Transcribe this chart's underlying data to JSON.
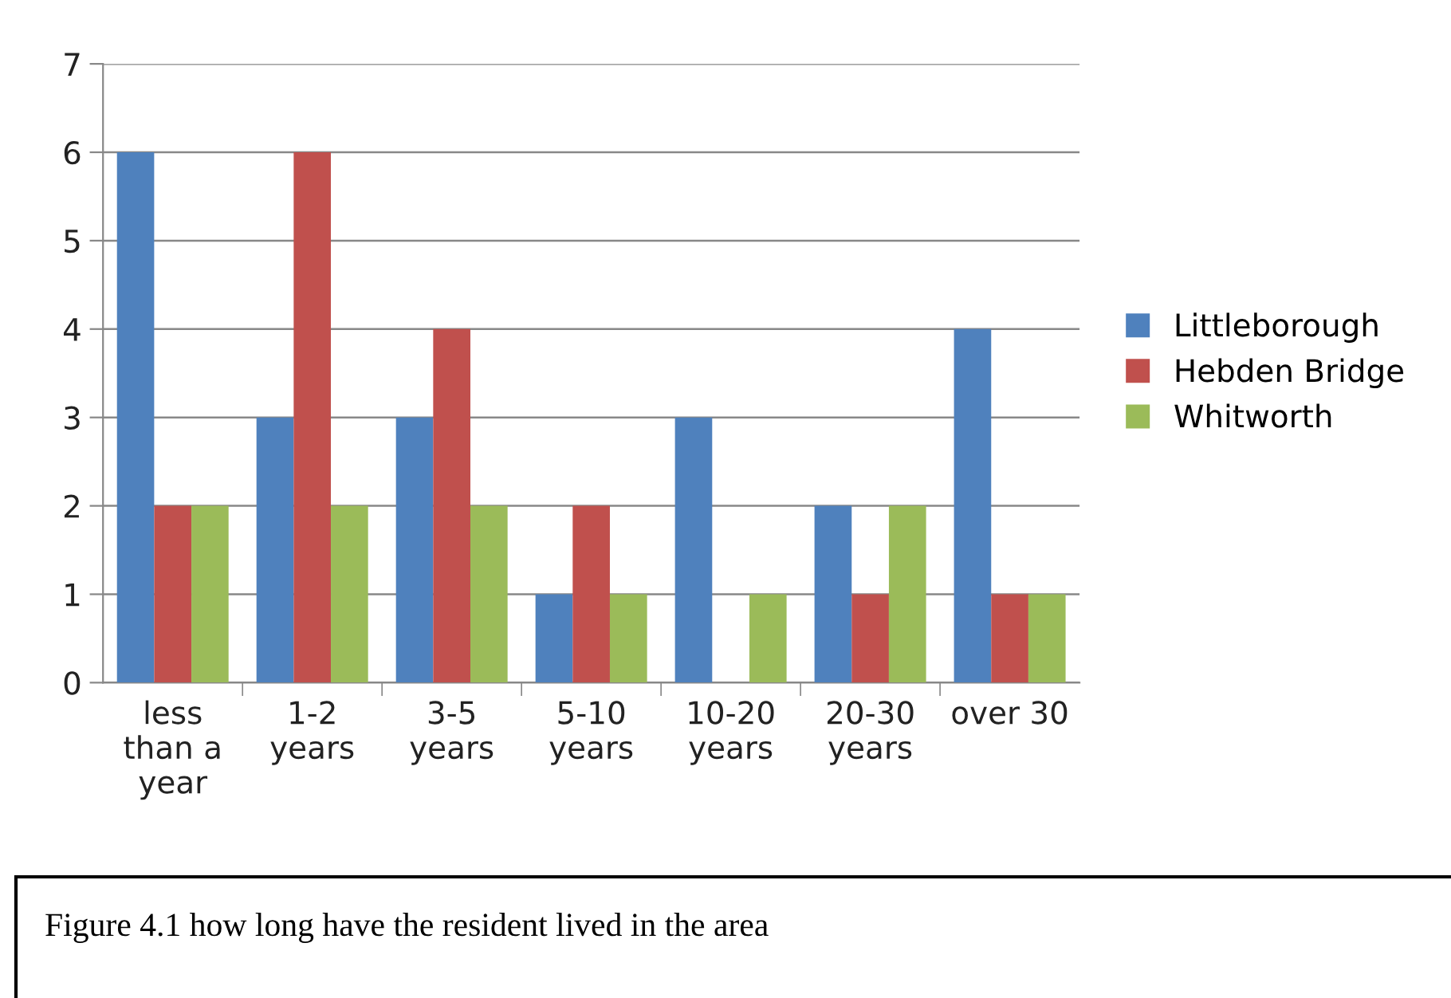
{
  "chart_data": {
    "type": "bar",
    "categories": [
      "less\nthan a\nyear",
      "1-2\nyears",
      "3-5\nyears",
      "5-10\nyears",
      "10-20\nyears",
      "20-30\nyears",
      "over 30"
    ],
    "series": [
      {
        "name": "Littleborough",
        "color": "#4f81bd",
        "values": [
          6,
          3,
          3,
          1,
          3,
          2,
          4
        ]
      },
      {
        "name": "Hebden Bridge",
        "color": "#c0504d",
        "values": [
          2,
          6,
          4,
          2,
          0,
          1,
          1
        ]
      },
      {
        "name": "Whitworth",
        "color": "#9bbb59",
        "values": [
          2,
          2,
          2,
          1,
          1,
          2,
          1
        ]
      }
    ],
    "ylim": [
      0,
      7
    ],
    "yticks": [
      0,
      1,
      2,
      3,
      4,
      5,
      6,
      7
    ],
    "grid": "y",
    "legend": "right",
    "annotations": [
      "Figure 4.1 how long have the resident lived in the area"
    ]
  }
}
